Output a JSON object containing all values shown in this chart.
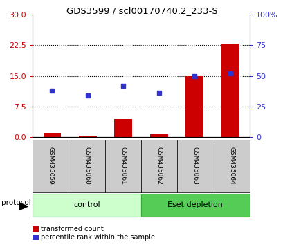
{
  "title": "GDS3599 / scl00170740.2_233-S",
  "samples": [
    "GSM435059",
    "GSM435060",
    "GSM435061",
    "GSM435062",
    "GSM435063",
    "GSM435064"
  ],
  "transformed_counts": [
    1.1,
    0.3,
    4.5,
    0.7,
    15.0,
    23.0
  ],
  "percentile_ranks": [
    38.0,
    34.0,
    42.0,
    36.5,
    50.0,
    52.0
  ],
  "left_ylim": [
    0,
    30
  ],
  "right_ylim": [
    0,
    100
  ],
  "left_yticks": [
    0,
    7.5,
    15,
    22.5,
    30
  ],
  "right_yticks": [
    0,
    25,
    50,
    75,
    100
  ],
  "right_yticklabels": [
    "0",
    "25",
    "50",
    "75",
    "100%"
  ],
  "bar_color": "#cc0000",
  "dot_color": "#3333cc",
  "control_color": "#ccffcc",
  "depletion_color": "#55cc55",
  "label_bg_color": "#cccccc",
  "control_group": {
    "label": "control",
    "start": 0,
    "end": 3
  },
  "depletion_group": {
    "label": "Eset depletion",
    "start": 3,
    "end": 6
  },
  "legend_items": [
    {
      "color": "#cc0000",
      "label": "transformed count"
    },
    {
      "color": "#3333cc",
      "label": "percentile rank within the sample"
    }
  ],
  "bar_width": 0.5
}
